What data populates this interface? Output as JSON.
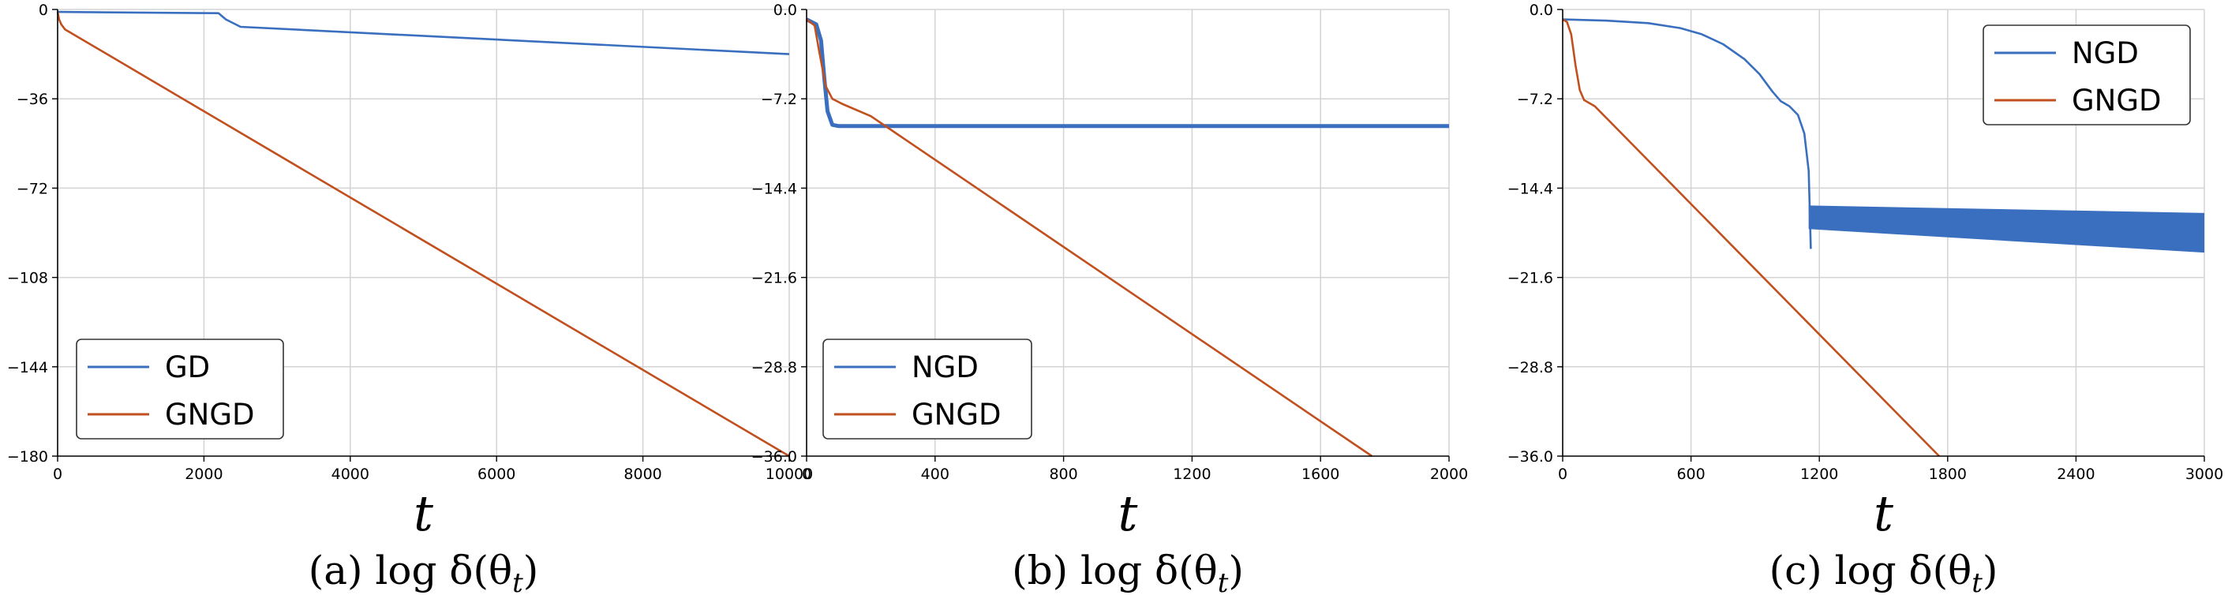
{
  "colors": {
    "blue": "#3a6fbf",
    "orange": "#c1501e"
  },
  "chart_data": [
    {
      "type": "line",
      "caption_prefix": "(a)",
      "caption_math": "log δ(θ",
      "caption_sub": "t",
      "caption_close": ")",
      "xlabel": "t",
      "xlim": [
        0,
        10000
      ],
      "ylim": [
        -180,
        0
      ],
      "xticks": [
        0,
        2000,
        4000,
        6000,
        8000,
        10000
      ],
      "xtick_labels": [
        "0",
        "2000",
        "4000",
        "6000",
        "8000",
        "10000"
      ],
      "yticks": [
        0,
        -36,
        -72,
        -108,
        -144,
        -180
      ],
      "ytick_labels": [
        "0",
        "−36",
        "−72",
        "−108",
        "−144",
        "−180"
      ],
      "grid": true,
      "legend_position": "lower-left",
      "series": [
        {
          "name": "GD",
          "color": "blue",
          "x": [
            0,
            2200,
            2300,
            2500,
            10000
          ],
          "y": [
            -1,
            -1.5,
            -4,
            -7,
            -18
          ]
        },
        {
          "name": "GNGD",
          "color": "orange",
          "x": [
            0,
            20,
            50,
            100,
            10000
          ],
          "y": [
            -1,
            -4,
            -6,
            -8,
            -180
          ]
        }
      ]
    },
    {
      "type": "line",
      "caption_prefix": "(b)",
      "caption_math": "log δ(θ",
      "caption_sub": "t",
      "caption_close": ")",
      "xlabel": "t",
      "xlim": [
        0,
        2000
      ],
      "ylim": [
        -36,
        0
      ],
      "xticks": [
        0,
        400,
        800,
        1200,
        1600,
        2000
      ],
      "xtick_labels": [
        "0",
        "400",
        "800",
        "1200",
        "1600",
        "2000"
      ],
      "yticks": [
        0,
        -7.2,
        -14.4,
        -21.6,
        -28.8,
        -36
      ],
      "ytick_labels": [
        "0.0",
        "−7.2",
        "−14.4",
        "−21.6",
        "−28.8",
        "−36.0"
      ],
      "grid": true,
      "legend_position": "lower-left",
      "series": [
        {
          "name": "NGD",
          "color": "blue",
          "x": [
            0,
            30,
            45,
            55,
            65,
            80,
            100,
            2000
          ],
          "y": [
            -0.8,
            -1.2,
            -2.5,
            -5.5,
            -8.2,
            -9.3,
            -9.4,
            -9.4
          ],
          "band": 0.18
        },
        {
          "name": "GNGD",
          "color": "orange",
          "x": [
            0,
            25,
            40,
            60,
            80,
            110,
            200,
            1760
          ],
          "y": [
            -0.8,
            -1.3,
            -3.5,
            -6.2,
            -7.2,
            -7.6,
            -8.6,
            -36
          ]
        }
      ]
    },
    {
      "type": "line",
      "caption_prefix": "(c)",
      "caption_math": "log δ(θ",
      "caption_sub": "t",
      "caption_close": ")",
      "xlabel": "t",
      "xlim": [
        0,
        3000
      ],
      "ylim": [
        -36,
        0
      ],
      "xticks": [
        0,
        600,
        1200,
        1800,
        2400,
        3000
      ],
      "xtick_labels": [
        "0",
        "600",
        "1200",
        "1800",
        "2400",
        "3000"
      ],
      "yticks": [
        0,
        -7.2,
        -14.4,
        -21.6,
        -28.8,
        -36
      ],
      "ytick_labels": [
        "0.0",
        "−7.2",
        "−14.4",
        "−21.6",
        "−28.8",
        "−36.0"
      ],
      "grid": true,
      "legend_position": "upper-right",
      "series": [
        {
          "name": "NGD",
          "color": "blue",
          "x": [
            0,
            200,
            400,
            550,
            650,
            750,
            850,
            920,
            980,
            1020,
            1060,
            1100,
            1130,
            1150,
            1160
          ],
          "y": [
            -0.8,
            -0.9,
            -1.1,
            -1.5,
            -2.0,
            -2.8,
            -4.0,
            -5.2,
            -6.6,
            -7.4,
            -7.8,
            -8.5,
            -10.0,
            -13.0,
            -19.3
          ]
        },
        {
          "name": "GNGD",
          "color": "orange",
          "x": [
            0,
            20,
            40,
            60,
            80,
            100,
            150,
            1760
          ],
          "y": [
            -0.8,
            -1.0,
            -2.0,
            -4.5,
            -6.5,
            -7.3,
            -7.8,
            -36
          ]
        }
      ],
      "oscillation_band": {
        "x": [
          1150,
          3000
        ],
        "upper": [
          -15.8,
          -16.4
        ],
        "lower": [
          -17.7,
          -19.6
        ]
      }
    }
  ]
}
